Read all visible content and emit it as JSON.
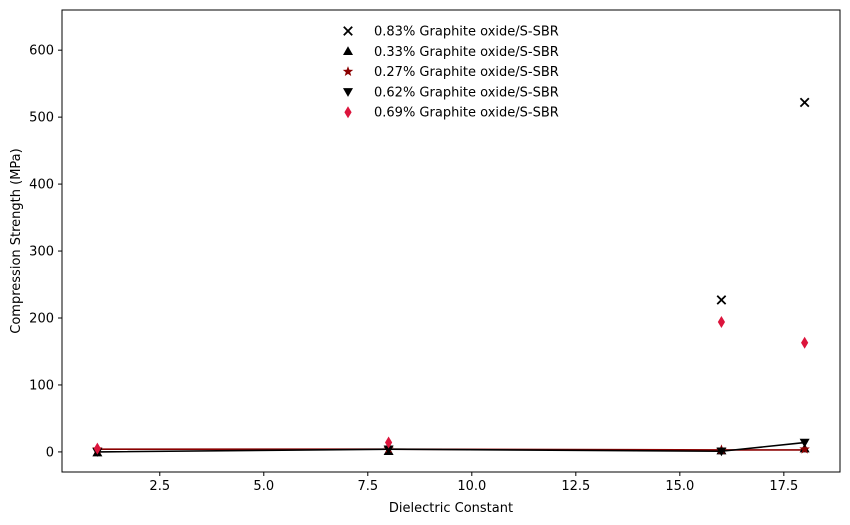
{
  "chart_data": {
    "type": "scatter",
    "title": "",
    "xlabel": "Dielectric Constant",
    "ylabel": "Compression Strength (MPa)",
    "xlim": [
      0.15,
      18.85
    ],
    "ylim": [
      -30,
      660
    ],
    "x_ticks": [
      2.5,
      5.0,
      7.5,
      10.0,
      12.5,
      15.0,
      17.5
    ],
    "x_tick_labels": [
      "2.5",
      "5.0",
      "7.5",
      "10.0",
      "12.5",
      "15.0",
      "17.5"
    ],
    "y_ticks": [
      0,
      100,
      200,
      300,
      400,
      500,
      600
    ],
    "y_tick_labels": [
      "0",
      "100",
      "200",
      "300",
      "400",
      "500",
      "600"
    ],
    "grid": false,
    "legend_position": "top-center",
    "series": [
      {
        "name": "0.83% Graphite oxide/S-SBR",
        "marker": "x",
        "color": "#000000",
        "x": [
          16,
          18
        ],
        "y": [
          227,
          522
        ]
      },
      {
        "name": "0.33% Graphite oxide/S-SBR",
        "marker": "triangle-up",
        "color": "#000000",
        "x": [
          1,
          8,
          16,
          18
        ],
        "y": [
          -1,
          1,
          2,
          5
        ]
      },
      {
        "name": "0.27% Graphite oxide/S-SBR",
        "marker": "star",
        "color": "#8b0000",
        "x": [
          1,
          8,
          16,
          18
        ],
        "y": [
          4,
          5,
          3,
          4
        ]
      },
      {
        "name": "0.62% Graphite oxide/S-SBR",
        "marker": "triangle-down",
        "color": "#000000",
        "x": [
          1,
          8,
          16,
          18
        ],
        "y": [
          0,
          4,
          1,
          14
        ]
      },
      {
        "name": "0.69% Graphite oxide/S-SBR",
        "marker": "diamond",
        "color": "#dc143c",
        "x": [
          1,
          8,
          16,
          18
        ],
        "y": [
          5,
          14,
          194,
          163
        ]
      }
    ],
    "lines": [
      {
        "color": "#8b0000",
        "x": [
          1,
          8,
          16,
          18
        ],
        "y": [
          4,
          4,
          3,
          3
        ]
      },
      {
        "color": "#000000",
        "x": [
          1,
          8,
          16,
          18
        ],
        "y": [
          0,
          4,
          1,
          14
        ]
      }
    ]
  }
}
